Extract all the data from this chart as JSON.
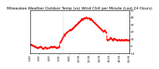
{
  "title": "Milwaukee Weather Outdoor Temp (vs) Wind Chill per Minute (Last 24 Hours)",
  "bg_color": "#ffffff",
  "plot_bg_color": "#ffffff",
  "line_color": "#ff0000",
  "line_style": "--",
  "line_width": 0.8,
  "marker": ".",
  "marker_size": 1.5,
  "vline_color": "#aaaaaa",
  "vline_style": ":",
  "vline_pos": 46,
  "ylim": [
    -10,
    50
  ],
  "yticks": [
    -10,
    -5,
    0,
    5,
    10,
    15,
    20,
    25,
    30,
    35,
    40,
    45,
    50
  ],
  "ytick_labels": [
    "-10",
    "",
    "0",
    "",
    "10",
    "",
    "20",
    "",
    "30",
    "",
    "40",
    "",
    "50"
  ],
  "title_fontsize": 4,
  "tick_fontsize": 2.8,
  "y": [
    2,
    2,
    1,
    1,
    0,
    0,
    -1,
    -1,
    -2,
    -2,
    -3,
    -3,
    -2,
    -2,
    -1,
    -1,
    -2,
    -3,
    -4,
    -4,
    -3,
    -2,
    -2,
    -3,
    -4,
    -3,
    -3,
    -2,
    -2,
    -1,
    -1,
    -2,
    -2,
    -1,
    -1,
    -2,
    -2,
    -3,
    -3,
    -2,
    -2,
    -1,
    5,
    6,
    8,
    10,
    12,
    14,
    16,
    15,
    17,
    18,
    19,
    20,
    21,
    22,
    23,
    22,
    23,
    24,
    25,
    26,
    27,
    28,
    29,
    30,
    31,
    32,
    33,
    34,
    35,
    36,
    37,
    38,
    37,
    38,
    39,
    38,
    39,
    40,
    39,
    38,
    39,
    38,
    37,
    38,
    37,
    36,
    35,
    34,
    33,
    32,
    31,
    30,
    29,
    28,
    27,
    26,
    25,
    24,
    23,
    22,
    21,
    20,
    21,
    22,
    20,
    19,
    10,
    8,
    9,
    10,
    11,
    12,
    10,
    9,
    8,
    10,
    11,
    10,
    9,
    9,
    8,
    8,
    9,
    9,
    8,
    8,
    9,
    9,
    8,
    8,
    9,
    9,
    8,
    9,
    9,
    8,
    8,
    9
  ]
}
